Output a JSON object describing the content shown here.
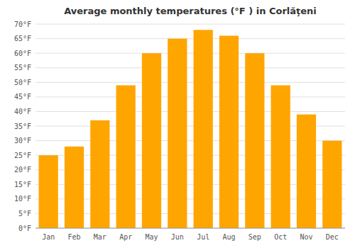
{
  "chart_data": {
    "type": "bar",
    "title": "Average monthly temperatures (°F ) in Corlăţeni",
    "categories": [
      "Jan",
      "Feb",
      "Mar",
      "Apr",
      "May",
      "Jun",
      "Jul",
      "Aug",
      "Sep",
      "Oct",
      "Nov",
      "Dec"
    ],
    "values": [
      25,
      28,
      37,
      49,
      60,
      65,
      68,
      66,
      60,
      49,
      39,
      30
    ],
    "color": "#FFA500",
    "ylim": [
      0,
      70
    ],
    "yticks": [
      {
        "value": 0,
        "label": "0°F"
      },
      {
        "value": 5,
        "label": "5°F"
      },
      {
        "value": 10,
        "label": "10°F"
      },
      {
        "value": 15,
        "label": "15°F"
      },
      {
        "value": 20,
        "label": "20°F"
      },
      {
        "value": 25,
        "label": "25°F"
      },
      {
        "value": 30,
        "label": "30°F"
      },
      {
        "value": 35,
        "label": "35°F"
      },
      {
        "value": 40,
        "label": "40°F"
      },
      {
        "value": 45,
        "label": "45°F"
      },
      {
        "value": 50,
        "label": "50°F"
      },
      {
        "value": 55,
        "label": "55°F"
      },
      {
        "value": 60,
        "label": "60°F"
      },
      {
        "value": 65,
        "label": "65°F"
      },
      {
        "value": 70,
        "label": "70°F"
      }
    ],
    "grid": true
  }
}
